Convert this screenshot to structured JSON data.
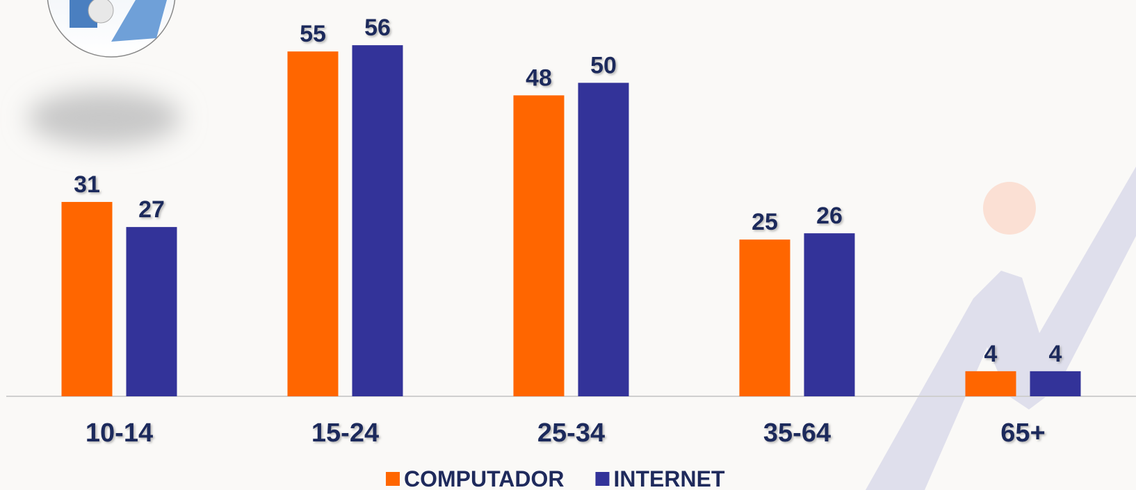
{
  "chart_data": {
    "type": "bar",
    "categories": [
      "10-14",
      "15-24",
      "25-34",
      "35-64",
      "65+"
    ],
    "series": [
      {
        "name": "COMPUTADOR",
        "color": "#ff6600",
        "values": [
          31,
          55,
          48,
          25,
          4
        ]
      },
      {
        "name": "INTERNET",
        "color": "#333399",
        "values": [
          27,
          56,
          50,
          26,
          4
        ]
      }
    ],
    "ylim": [
      0,
      60
    ]
  }
}
